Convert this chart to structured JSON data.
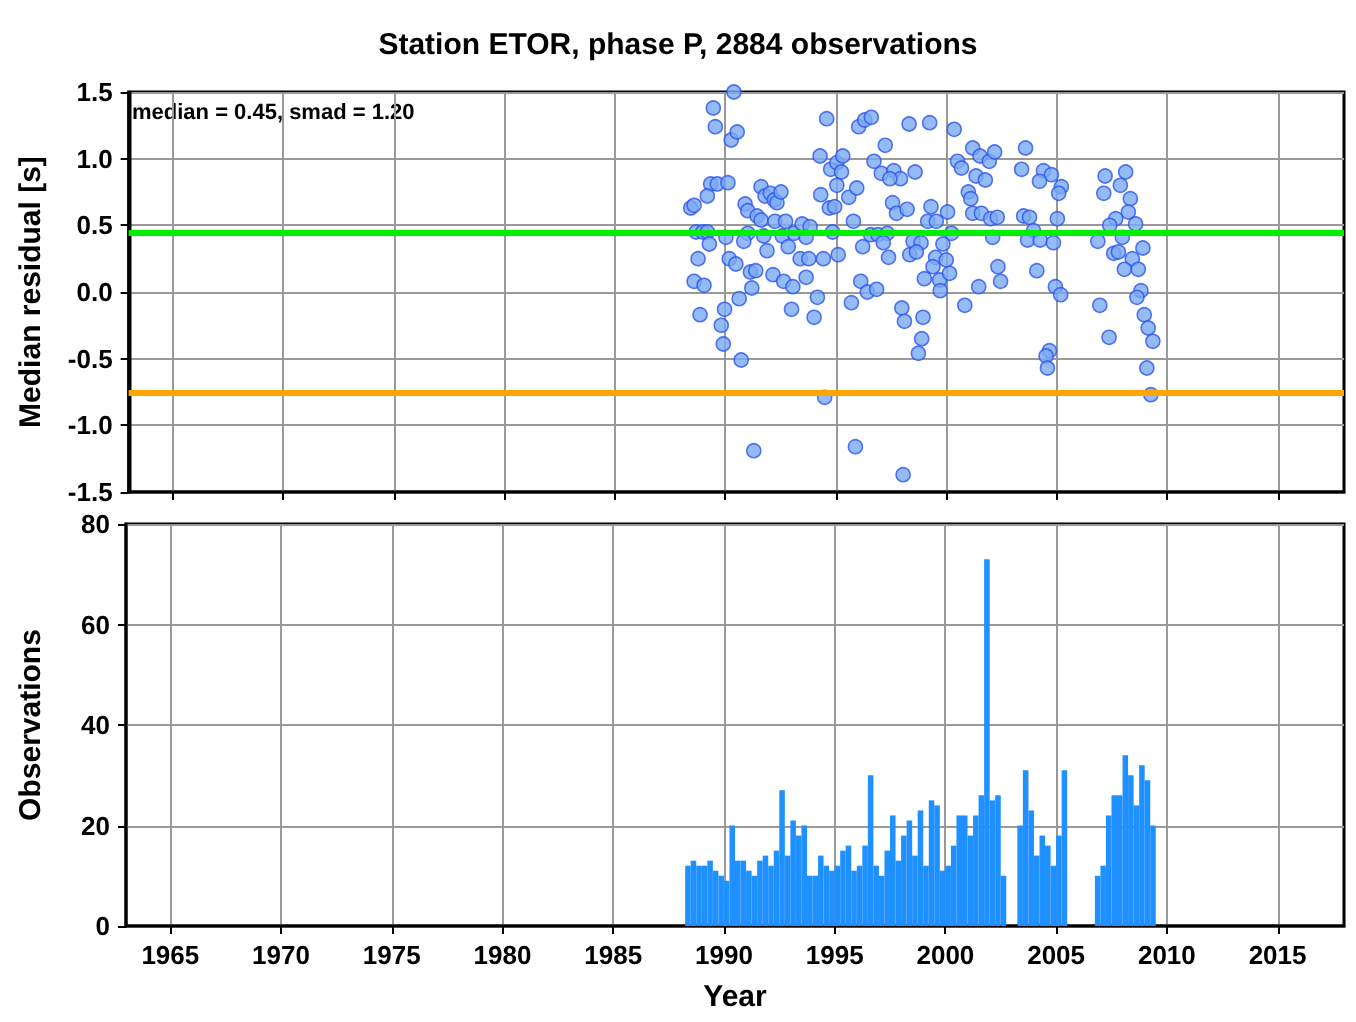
{
  "chart_data": [
    {
      "type": "scatter",
      "title": "Station ETOR, phase P, 2884 observations",
      "ylabel": "Median residual [s]",
      "annotations": [
        "median = 0.45, smad = 1.20"
      ],
      "x": [
        1989.46,
        1990.39,
        1989.55,
        1990.27,
        1990.54,
        1988.44,
        1988.59,
        1989.34,
        1989.64,
        1990.12,
        1989.19,
        1988.68,
        1988.98,
        1989.19,
        1989.28,
        1990.03,
        1988.77,
        1988.59,
        1989.04,
        1988.86,
        1989.97,
        1989.82,
        1989.91,
        1990.72,
        1990.18,
        1990.48,
        1990.63,
        1990.9,
        1991.02,
        1991.14,
        1991.38,
        1991.2,
        1991.02,
        1990.84,
        1991.62,
        1991.8,
        1992.04,
        1992.22,
        1992.34,
        1992.52,
        1991.44,
        1991.62,
        1991.74,
        1991.89,
        1992.25,
        1992.73,
        1992.58,
        1992.16,
        1992.64,
        1993.06,
        1993.0,
        1994.02,
        1994.17,
        1993.66,
        1991.29,
        1992.85,
        1993.12,
        1993.48,
        1993.84,
        1993.66,
        1993.39,
        1993.78,
        1994.44,
        1995.11,
        1994.5,
        1994.29,
        1994.59,
        1994.77,
        1995.05,
        1995.32,
        1995.26,
        1994.32,
        1994.71,
        1994.95,
        1995.05,
        1995.59,
        1995.95,
        1995.8,
        1994.86,
        1996.22,
        1995.71,
        1996.13,
        1996.43,
        1996.85,
        1995.89,
        1996.04,
        1996.31,
        1996.61,
        1997.24,
        1996.73,
        1997.06,
        1997.63,
        1997.93,
        1997.45,
        1998.59,
        1997.57,
        1997.75,
        1998.23,
        1996.58,
        1996.91,
        1997.33,
        1997.15,
        1997.39,
        1997.99,
        1998.11,
        1998.5,
        1998.86,
        1998.35,
        1998.65,
        1999.52,
        1999.01,
        1999.4,
        1998.95,
        1998.89,
        1998.74,
        1998.05,
        1998.32,
        1999.25,
        1999.31,
        1999.16,
        1999.55,
        1999.7,
        1999.73,
        1999.85,
        2000.0,
        2000.15,
        2000.84,
        2000.36,
        2000.06,
        2000.24,
        2000.51,
        2000.69,
        2001.2,
        2001.53,
        2001.95,
        2002.19,
        2001.35,
        2001.77,
        2001.0,
        2001.11,
        2001.2,
        2001.59,
        2002.01,
        2002.31,
        2002.1,
        2002.34,
        2002.46,
        2001.47,
        2003.59,
        2003.41,
        2004.4,
        2004.76,
        2004.22,
        2005.21,
        2005.09,
        2003.5,
        2003.77,
        2005.03,
        2003.95,
        2003.68,
        2004.25,
        2004.85,
        2004.1,
        2004.94,
        2005.18,
        2004.67,
        2004.52,
        2004.58,
        2007.19,
        2008.12,
        2007.88,
        2007.13,
        2008.33,
        2008.24,
        2007.67,
        2007.4,
        2008.57,
        2007.97,
        2006.86,
        2007.58,
        2007.79,
        2008.9,
        2008.42,
        2008.06,
        2008.69,
        2008.81,
        2008.63,
        2006.95,
        2008.96,
        2009.14,
        2009.35,
        2007.37,
        2009.08,
        2009.26
      ],
      "series": [
        {
          "color": "#7aaaf5",
          "values": [
            1.38,
            1.5,
            1.24,
            1.14,
            1.2,
            0.63,
            0.65,
            0.81,
            0.81,
            0.82,
            0.72,
            0.45,
            0.45,
            0.45,
            0.36,
            0.41,
            0.25,
            0.08,
            0.05,
            -0.17,
            -0.13,
            -0.25,
            -0.39,
            -0.51,
            0.25,
            0.21,
            -0.05,
            0.66,
            0.61,
            0.15,
            0.16,
            0.03,
            0.44,
            0.38,
            0.79,
            0.72,
            0.74,
            0.69,
            0.67,
            0.75,
            0.57,
            0.54,
            0.42,
            0.31,
            0.53,
            0.53,
            0.42,
            0.13,
            0.08,
            0.04,
            -0.13,
            -0.19,
            -0.04,
            0.11,
            -1.19,
            0.34,
            0.44,
            0.51,
            0.49,
            0.41,
            0.25,
            0.25,
            0.25,
            0.28,
            -0.79,
            1.02,
            1.3,
            0.92,
            0.97,
            1.02,
            0.9,
            0.73,
            0.63,
            0.64,
            0.8,
            0.71,
            0.78,
            0.53,
            0.45,
            0.34,
            -0.08,
            0.08,
            0.0,
            0.02,
            -1.16,
            1.24,
            1.29,
            1.31,
            1.1,
            0.98,
            0.89,
            0.91,
            0.85,
            0.85,
            0.9,
            0.67,
            0.59,
            0.62,
            0.43,
            0.43,
            0.44,
            0.37,
            0.26,
            -0.12,
            -0.22,
            0.38,
            0.37,
            0.28,
            0.3,
            0.26,
            0.1,
            0.19,
            -0.19,
            -0.35,
            -0.46,
            -1.37,
            1.26,
            1.27,
            0.64,
            0.53,
            0.53,
            0.09,
            0.01,
            0.36,
            0.24,
            0.14,
            -0.1,
            1.22,
            0.6,
            0.44,
            0.98,
            0.93,
            1.08,
            1.02,
            0.98,
            1.05,
            0.87,
            0.84,
            0.75,
            0.7,
            0.59,
            0.59,
            0.55,
            0.56,
            0.41,
            0.19,
            0.08,
            0.04,
            1.08,
            0.92,
            0.91,
            0.88,
            0.83,
            0.79,
            0.74,
            0.57,
            0.56,
            0.55,
            0.46,
            0.39,
            0.39,
            0.37,
            0.16,
            0.04,
            -0.02,
            -0.44,
            -0.48,
            -0.57,
            0.87,
            0.9,
            0.8,
            0.74,
            0.7,
            0.6,
            0.55,
            0.5,
            0.51,
            0.41,
            0.38,
            0.29,
            0.3,
            0.33,
            0.25,
            0.17,
            0.17,
            0.01,
            -0.04,
            -0.1,
            -0.17,
            -0.27,
            -0.37,
            -0.34,
            -0.57,
            -0.77
          ]
        }
      ],
      "ref_lines": [
        {
          "axis": "y",
          "value": 0.45,
          "color": "#00ee00"
        },
        {
          "axis": "y",
          "value": -0.75,
          "color": "#ffa500"
        }
      ],
      "marker": "circle",
      "grid": true,
      "tick_labels": "y",
      "xlim": [
        1963,
        2018
      ],
      "xticks": [
        1965,
        1970,
        1975,
        1980,
        1985,
        1990,
        1995,
        2000,
        2005,
        2010,
        2015
      ],
      "ylim": [
        -1.5,
        1.5
      ],
      "yticks": [
        -1.5,
        {
          "value": -1,
          "label": "-1.0"
        },
        -0.5,
        {
          "value": 0,
          "label": "0.0"
        },
        0.5,
        {
          "value": 1,
          "label": "1.0"
        },
        1.5
      ]
    },
    {
      "type": "histogram",
      "xlabel": "Year",
      "ylabel": "Observations",
      "color": "#1e90ff",
      "bins": [
        1988.25,
        1988.5,
        1988.75,
        1989,
        1989.25,
        1989.5,
        1989.75,
        1990,
        1990.25,
        1990.5,
        1990.75,
        1991,
        1991.25,
        1991.5,
        1991.75,
        1992,
        1992.25,
        1992.5,
        1992.75,
        1993,
        1993.25,
        1993.5,
        1993.75,
        1994,
        1994.25,
        1994.5,
        1994.75,
        1995,
        1995.25,
        1995.5,
        1995.75,
        1996,
        1996.25,
        1996.5,
        1996.75,
        1997,
        1997.25,
        1997.5,
        1997.75,
        1998,
        1998.25,
        1998.5,
        1998.75,
        1999,
        1999.25,
        1999.5,
        1999.75,
        2000,
        2000.25,
        2000.5,
        2000.75,
        2001,
        2001.25,
        2001.5,
        2001.75,
        2002,
        2002.25,
        2002.5,
        2002.75,
        2003,
        2003.25,
        2003.5,
        2003.75,
        2004,
        2004.25,
        2004.5,
        2004.75,
        2005,
        2005.25,
        2005.5,
        2005.75,
        2006,
        2006.25,
        2006.5,
        2006.75,
        2007,
        2007.25,
        2007.5,
        2007.75,
        2008,
        2008.25,
        2008.5,
        2008.75,
        2009,
        2009.25,
        2009.5
      ],
      "values": [
        12,
        13,
        12,
        12,
        13,
        11,
        10,
        9,
        20,
        13,
        13,
        11,
        10,
        13,
        14,
        12,
        15,
        27,
        14,
        21,
        18,
        20,
        10,
        10,
        14,
        12,
        11,
        12,
        15,
        16,
        11,
        12,
        16,
        30,
        12,
        10,
        15,
        22,
        13,
        18,
        21,
        14,
        23,
        12,
        25,
        24,
        11,
        12,
        16,
        22,
        22,
        18,
        22,
        26,
        73,
        25,
        26,
        10,
        0,
        0,
        20,
        31,
        23,
        14,
        18,
        16,
        12,
        18,
        31,
        0,
        0,
        0,
        0,
        0,
        10,
        12,
        22,
        26,
        26,
        34,
        30,
        24,
        32,
        29,
        20
      ],
      "grid": true,
      "xlim": [
        1963,
        2018
      ],
      "xticks": [
        1965,
        1970,
        1975,
        1980,
        1985,
        1990,
        1995,
        2000,
        2005,
        2010,
        2015
      ],
      "ylim": [
        0,
        80
      ],
      "yticks": [
        0,
        20,
        40,
        60,
        80
      ]
    }
  ]
}
